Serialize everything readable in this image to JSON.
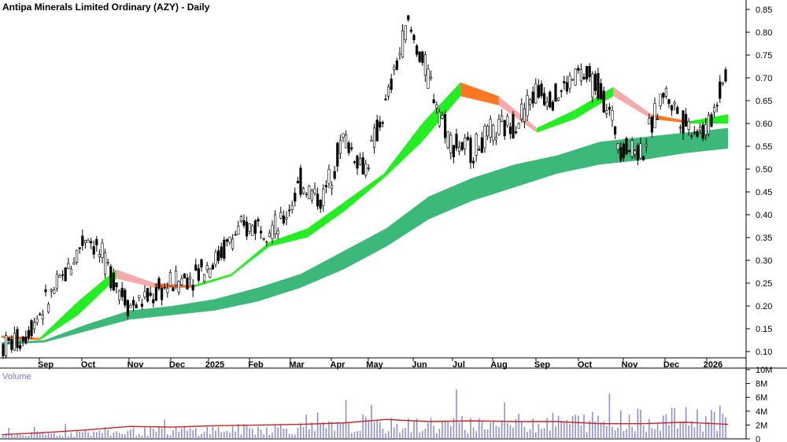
{
  "chart_data": {
    "type": "candlestick",
    "title": "Antipa Minerals Limited Ordinary (AZY) - Daily",
    "y_ticks": [
      "0.85",
      "0.80",
      "0.75",
      "0.70",
      "0.65",
      "0.60",
      "0.55",
      "0.50",
      "0.45",
      "0.40",
      "0.35",
      "0.30",
      "0.25",
      "0.20",
      "0.15",
      "0.10"
    ],
    "ylim": [
      0.075,
      0.875
    ],
    "x_ticks": [
      "Sep",
      "Oct",
      "Nov",
      "Dec",
      "2025",
      "Feb",
      "Mar",
      "Apr",
      "May",
      "Jun",
      "Jul",
      "Aug",
      "Sep",
      "Oct",
      "Nov",
      "Dec",
      "2026"
    ],
    "close_trace": [
      [
        "Aug",
        0.11
      ],
      [
        "Sep",
        0.13
      ],
      [
        "Sep",
        0.2
      ],
      [
        "Oct",
        0.27
      ],
      [
        "Oct",
        0.36
      ],
      [
        "Oct",
        0.28
      ],
      [
        "Nov",
        0.2
      ],
      [
        "Nov",
        0.22
      ],
      [
        "Dec",
        0.25
      ],
      [
        "2025",
        0.27
      ],
      [
        "2025",
        0.3
      ],
      [
        "Feb",
        0.36
      ],
      [
        "Feb",
        0.38
      ],
      [
        "Mar",
        0.37
      ],
      [
        "Mar",
        0.47
      ],
      [
        "Apr",
        0.43
      ],
      [
        "Apr",
        0.57
      ],
      [
        "May",
        0.5
      ],
      [
        "May",
        0.64
      ],
      [
        "Jun",
        0.82
      ],
      [
        "Jun",
        0.7
      ],
      [
        "Jul",
        0.56
      ],
      [
        "Jul",
        0.54
      ],
      [
        "Aug",
        0.58
      ],
      [
        "Aug",
        0.6
      ],
      [
        "Sep",
        0.67
      ],
      [
        "Sep",
        0.66
      ],
      [
        "Oct",
        0.71
      ],
      [
        "Oct",
        0.68
      ],
      [
        "Nov",
        0.55
      ],
      [
        "Nov",
        0.54
      ],
      [
        "Dec",
        0.67
      ],
      [
        "Dec",
        0.6
      ],
      [
        "2026",
        0.58
      ],
      [
        "2026",
        0.73
      ]
    ],
    "short_ema_band": [
      [
        "Aug",
        0.13,
        0.135
      ],
      [
        "Sep",
        0.125,
        0.13
      ],
      [
        "Oct",
        0.18,
        0.21
      ],
      [
        "Oct",
        0.26,
        0.28
      ],
      [
        "Nov",
        0.24,
        0.25
      ],
      [
        "Dec",
        0.24,
        0.245
      ],
      [
        "2025",
        0.265,
        0.27
      ],
      [
        "Feb",
        0.33,
        0.34
      ],
      [
        "Mar",
        0.35,
        0.37
      ],
      [
        "Apr",
        0.41,
        0.43
      ],
      [
        "May",
        0.48,
        0.49
      ],
      [
        "May",
        0.56,
        0.6
      ],
      [
        "Jun",
        0.66,
        0.69
      ],
      [
        "Jul",
        0.64,
        0.66
      ],
      [
        "Aug",
        0.58,
        0.59
      ],
      [
        "Sep",
        0.61,
        0.63
      ],
      [
        "Oct",
        0.66,
        0.68
      ],
      [
        "Nov",
        0.61,
        0.62
      ],
      [
        "Dec",
        0.6,
        0.605
      ],
      [
        "2026",
        0.6,
        0.62
      ]
    ],
    "long_ema_band": [
      [
        "Aug",
        0.115,
        0.12
      ],
      [
        "Sep",
        0.12,
        0.125
      ],
      [
        "Oct",
        0.145,
        0.16
      ],
      [
        "Nov",
        0.17,
        0.19
      ],
      [
        "Dec",
        0.18,
        0.2
      ],
      [
        "2025",
        0.19,
        0.215
      ],
      [
        "Feb",
        0.21,
        0.24
      ],
      [
        "Mar",
        0.24,
        0.27
      ],
      [
        "Apr",
        0.28,
        0.32
      ],
      [
        "May",
        0.33,
        0.37
      ],
      [
        "Jun",
        0.39,
        0.44
      ],
      [
        "Jul",
        0.43,
        0.48
      ],
      [
        "Aug",
        0.46,
        0.51
      ],
      [
        "Sep",
        0.49,
        0.53
      ],
      [
        "Oct",
        0.51,
        0.56
      ],
      [
        "Nov",
        0.52,
        0.57
      ],
      [
        "Dec",
        0.535,
        0.58
      ],
      [
        "2026",
        0.545,
        0.59
      ]
    ],
    "volume": {
      "label": "Volume",
      "y_ticks": [
        "10M",
        "8M",
        "6M",
        "4M",
        "2M",
        "0"
      ],
      "ylim": [
        0,
        10
      ],
      "avg_trace": [
        [
          "Aug",
          0.6
        ],
        [
          "Sep",
          0.9
        ],
        [
          "Oct",
          1.3
        ],
        [
          "Nov",
          1.8
        ],
        [
          "Dec",
          1.7
        ],
        [
          "2025",
          1.9
        ],
        [
          "Feb",
          2.0
        ],
        [
          "Mar",
          2.1
        ],
        [
          "Apr",
          2.3
        ],
        [
          "May",
          2.8
        ],
        [
          "Jun",
          2.5
        ],
        [
          "Jul",
          2.6
        ],
        [
          "Aug",
          2.5
        ],
        [
          "Sep",
          2.5
        ],
        [
          "Oct",
          2.2
        ],
        [
          "Nov",
          2.2
        ],
        [
          "Dec",
          2.4
        ],
        [
          "2026",
          2.1
        ]
      ]
    },
    "grid": false,
    "colors": {
      "candle": "#000000",
      "short_band_up": "#22ee22",
      "short_band_down": "#ff7722",
      "short_band_weak": "#f6aaaa",
      "long_band": "#3cb878",
      "volume_bar": "#8f8fd6",
      "volume_avg": "#cc2222",
      "axis": "#000000"
    }
  }
}
